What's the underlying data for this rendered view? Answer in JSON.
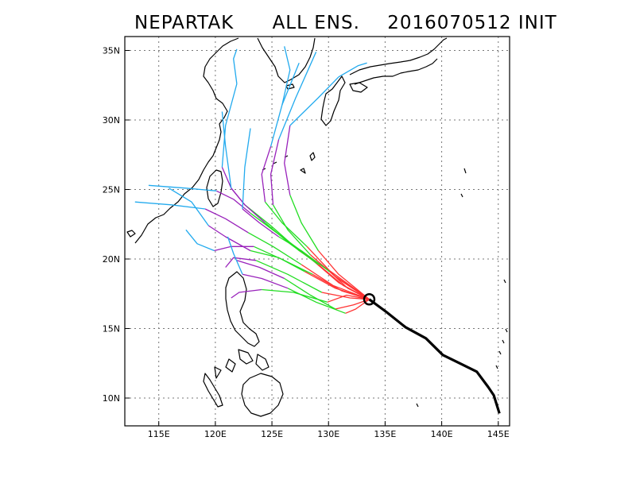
{
  "title": {
    "storm": "NEPARTAK",
    "ensemble": "ALL ENS.",
    "init": "2016070512 INIT"
  },
  "chart_data": {
    "type": "map",
    "title": "NEPARTAK   ALL ENS.  2016070512 INIT",
    "lon_range": [
      112,
      146
    ],
    "lat_range": [
      8,
      36
    ],
    "grid": true,
    "x_ticks": [
      {
        "lon": 115,
        "label": "115E"
      },
      {
        "lon": 120,
        "label": "120E"
      },
      {
        "lon": 125,
        "label": "125E"
      },
      {
        "lon": 130,
        "label": "130E"
      },
      {
        "lon": 135,
        "label": "135E"
      },
      {
        "lon": 140,
        "label": "140E"
      },
      {
        "lon": 145,
        "label": "145E"
      }
    ],
    "y_ticks": [
      {
        "lat": 10,
        "label": "10N"
      },
      {
        "lat": 15,
        "label": "15N"
      },
      {
        "lat": 20,
        "label": "20N"
      },
      {
        "lat": 25,
        "label": "25N"
      },
      {
        "lat": 30,
        "label": "30N"
      },
      {
        "lat": 35,
        "label": "35N"
      }
    ],
    "current_position": {
      "lon": 133.6,
      "lat": 17.1,
      "marker": "circle"
    },
    "best_track": {
      "color": "#000000",
      "points": [
        [
          145.1,
          8.9
        ],
        [
          144.6,
          10.2
        ],
        [
          144.1,
          10.8
        ],
        [
          143.1,
          11.9
        ],
        [
          141.6,
          12.5
        ],
        [
          140.1,
          13.1
        ],
        [
          138.6,
          14.3
        ],
        [
          136.8,
          15.1
        ],
        [
          135.1,
          16.2
        ],
        [
          133.6,
          17.1
        ]
      ]
    },
    "ensemble_tracks": [
      {
        "c": "#ff3333",
        "p": [
          [
            133.6,
            17.1
          ],
          [
            130.9,
            18.3
          ],
          [
            127.9,
            20.4
          ]
        ]
      },
      {
        "c": "#ff3333",
        "p": [
          [
            133.6,
            17.1
          ],
          [
            130.5,
            18.8
          ],
          [
            128.1,
            20.9
          ]
        ]
      },
      {
        "c": "#ff3333",
        "p": [
          [
            133.6,
            17.1
          ],
          [
            130.4,
            18.1
          ],
          [
            127.6,
            19.6
          ]
        ]
      },
      {
        "c": "#ff3333",
        "p": [
          [
            133.6,
            17.1
          ],
          [
            131.2,
            17.7
          ],
          [
            128.6,
            18.9
          ]
        ]
      },
      {
        "c": "#ff3333",
        "p": [
          [
            133.6,
            17.1
          ],
          [
            130.8,
            18.6
          ],
          [
            128.4,
            20.3
          ]
        ]
      },
      {
        "c": "#ff3333",
        "p": [
          [
            133.6,
            17.1
          ],
          [
            131.6,
            17.4
          ],
          [
            129.9,
            16.9
          ]
        ]
      },
      {
        "c": "#ff3333",
        "p": [
          [
            133.6,
            17.1
          ],
          [
            132.2,
            16.7
          ],
          [
            130.6,
            16.4
          ]
        ]
      },
      {
        "c": "#ff3333",
        "p": [
          [
            133.6,
            17.1
          ],
          [
            131.3,
            18.1
          ],
          [
            129.1,
            19.6
          ]
        ]
      },
      {
        "c": "#ff3333",
        "p": [
          [
            133.6,
            17.1
          ],
          [
            130.2,
            19.1
          ],
          [
            127.4,
            20.6
          ]
        ]
      },
      {
        "c": "#ff3333",
        "p": [
          [
            133.6,
            17.1
          ],
          [
            131.9,
            17.2
          ],
          [
            129.4,
            17.6
          ]
        ]
      },
      {
        "c": "#ff3333",
        "p": [
          [
            133.6,
            17.1
          ],
          [
            130.9,
            18.9
          ],
          [
            129.1,
            20.6
          ]
        ]
      },
      {
        "c": "#ff3333",
        "p": [
          [
            133.6,
            17.1
          ],
          [
            132.4,
            16.4
          ],
          [
            131.5,
            16.1
          ]
        ]
      },
      {
        "c": "#ff3333",
        "p": [
          [
            133.6,
            17.1
          ],
          [
            130.6,
            17.9
          ],
          [
            127.9,
            19.1
          ]
        ]
      },
      {
        "c": "#ff3333",
        "p": [
          [
            133.6,
            17.1
          ],
          [
            131.7,
            17.9
          ],
          [
            130.1,
            19.1
          ]
        ]
      },
      {
        "c": "#22dd22",
        "p": [
          [
            127.9,
            20.4
          ],
          [
            125.4,
            21.9
          ],
          [
            123.1,
            23.3
          ]
        ]
      },
      {
        "c": "#22dd22",
        "p": [
          [
            128.1,
            20.9
          ],
          [
            125.9,
            22.6
          ],
          [
            124.4,
            24.1
          ]
        ]
      },
      {
        "c": "#22dd22",
        "p": [
          [
            127.6,
            19.6
          ],
          [
            125.1,
            20.9
          ],
          [
            122.9,
            21.9
          ]
        ]
      },
      {
        "c": "#22dd22",
        "p": [
          [
            128.6,
            18.9
          ],
          [
            126.1,
            19.9
          ],
          [
            123.4,
            20.9
          ]
        ]
      },
      {
        "c": "#22dd22",
        "p": [
          [
            128.4,
            20.3
          ],
          [
            126.4,
            22.1
          ],
          [
            125.1,
            23.9
          ]
        ]
      },
      {
        "c": "#22dd22",
        "p": [
          [
            129.9,
            16.9
          ],
          [
            126.9,
            17.6
          ],
          [
            124.1,
            17.8
          ]
        ]
      },
      {
        "c": "#22dd22",
        "p": [
          [
            130.6,
            16.4
          ],
          [
            128.4,
            17.4
          ],
          [
            126.1,
            18.6
          ]
        ]
      },
      {
        "c": "#22dd22",
        "p": [
          [
            129.1,
            19.6
          ],
          [
            126.6,
            21.1
          ],
          [
            124.4,
            22.6
          ]
        ]
      },
      {
        "c": "#22dd22",
        "p": [
          [
            127.4,
            20.6
          ],
          [
            124.9,
            22.4
          ],
          [
            122.6,
            23.9
          ]
        ]
      },
      {
        "c": "#22dd22",
        "p": [
          [
            129.4,
            17.6
          ],
          [
            126.4,
            18.9
          ],
          [
            123.6,
            19.9
          ]
        ]
      },
      {
        "c": "#22dd22",
        "p": [
          [
            129.1,
            20.6
          ],
          [
            127.6,
            22.6
          ],
          [
            126.6,
            24.6
          ]
        ]
      },
      {
        "c": "#22dd22",
        "p": [
          [
            131.5,
            16.1
          ],
          [
            128.9,
            16.9
          ],
          [
            126.4,
            17.9
          ]
        ]
      },
      {
        "c": "#22dd22",
        "p": [
          [
            127.9,
            19.1
          ],
          [
            125.6,
            20.1
          ],
          [
            123.1,
            20.6
          ]
        ]
      },
      {
        "c": "#22dd22",
        "p": [
          [
            130.1,
            19.1
          ],
          [
            127.6,
            20.6
          ],
          [
            125.6,
            21.6
          ]
        ]
      },
      {
        "c": "#9922bb",
        "p": [
          [
            123.1,
            23.3
          ],
          [
            121.6,
            24.3
          ],
          [
            120.1,
            24.9
          ]
        ]
      },
      {
        "c": "#9922bb",
        "p": [
          [
            124.4,
            24.1
          ],
          [
            124.1,
            26.1
          ],
          [
            124.9,
            28.1
          ]
        ]
      },
      {
        "c": "#9922bb",
        "p": [
          [
            122.9,
            21.9
          ],
          [
            120.9,
            22.9
          ],
          [
            119.1,
            23.6
          ]
        ]
      },
      {
        "c": "#9922bb",
        "p": [
          [
            123.4,
            20.9
          ],
          [
            121.4,
            20.9
          ],
          [
            119.9,
            20.6
          ]
        ]
      },
      {
        "c": "#9922bb",
        "p": [
          [
            125.1,
            23.9
          ],
          [
            124.9,
            26.1
          ],
          [
            125.6,
            28.6
          ]
        ]
      },
      {
        "c": "#9922bb",
        "p": [
          [
            124.1,
            17.8
          ],
          [
            122.1,
            17.6
          ],
          [
            121.4,
            17.2
          ]
        ]
      },
      {
        "c": "#9922bb",
        "p": [
          [
            126.1,
            18.6
          ],
          [
            123.9,
            19.4
          ],
          [
            121.9,
            19.9
          ]
        ]
      },
      {
        "c": "#9922bb",
        "p": [
          [
            124.4,
            22.6
          ],
          [
            122.6,
            23.9
          ],
          [
            121.4,
            25.1
          ]
        ]
      },
      {
        "c": "#9922bb",
        "p": [
          [
            122.6,
            23.9
          ],
          [
            121.4,
            25.1
          ],
          [
            120.6,
            26.6
          ]
        ]
      },
      {
        "c": "#9922bb",
        "p": [
          [
            123.6,
            19.9
          ],
          [
            121.6,
            20.1
          ],
          [
            120.9,
            19.4
          ]
        ]
      },
      {
        "c": "#9922bb",
        "p": [
          [
            126.6,
            24.6
          ],
          [
            126.1,
            26.9
          ],
          [
            126.6,
            29.6
          ]
        ]
      },
      {
        "c": "#9922bb",
        "p": [
          [
            126.4,
            17.9
          ],
          [
            124.1,
            18.6
          ],
          [
            122.4,
            18.9
          ]
        ]
      },
      {
        "c": "#9922bb",
        "p": [
          [
            123.1,
            20.6
          ],
          [
            120.9,
            21.6
          ],
          [
            119.4,
            22.4
          ]
        ]
      },
      {
        "c": "#9922bb",
        "p": [
          [
            125.6,
            21.6
          ],
          [
            123.9,
            22.6
          ],
          [
            122.4,
            23.6
          ]
        ]
      },
      {
        "c": "#22aaee",
        "p": [
          [
            120.1,
            24.9
          ],
          [
            117.4,
            25.1
          ],
          [
            114.1,
            25.3
          ]
        ]
      },
      {
        "c": "#22aaee",
        "p": [
          [
            124.9,
            28.1
          ],
          [
            125.9,
            31.1
          ],
          [
            127.4,
            34.1
          ]
        ]
      },
      {
        "c": "#22aaee",
        "p": [
          [
            119.1,
            23.6
          ],
          [
            116.1,
            23.9
          ],
          [
            112.9,
            24.1
          ]
        ]
      },
      {
        "c": "#22aaee",
        "p": [
          [
            119.9,
            20.6
          ],
          [
            118.4,
            21.1
          ],
          [
            117.4,
            22.1
          ]
        ]
      },
      {
        "c": "#22aaee",
        "p": [
          [
            125.6,
            28.6
          ],
          [
            127.1,
            31.6
          ],
          [
            128.9,
            34.9
          ]
        ]
      },
      {
        "c": "#22aaee",
        "p": [
          [
            121.4,
            25.1
          ],
          [
            120.9,
            28.1
          ],
          [
            120.6,
            30.6
          ]
        ]
      },
      {
        "c": "#22aaee",
        "p": [
          [
            120.6,
            26.6
          ],
          [
            120.9,
            29.6
          ],
          [
            121.9,
            32.6
          ]
        ]
      },
      {
        "c": "#22aaee",
        "p": [
          [
            126.6,
            29.6
          ],
          [
            129.1,
            31.6
          ],
          [
            130.9,
            33.1
          ]
        ]
      },
      {
        "c": "#22aaee",
        "p": [
          [
            122.4,
            23.6
          ],
          [
            122.6,
            26.6
          ],
          [
            123.1,
            29.4
          ]
        ]
      },
      {
        "c": "#22aaee",
        "p": [
          [
            119.4,
            22.4
          ],
          [
            117.9,
            24.1
          ],
          [
            115.9,
            25.1
          ]
        ]
      },
      {
        "c": "#22aaee",
        "p": [
          [
            122.4,
            18.9
          ],
          [
            121.6,
            20.4
          ],
          [
            121.1,
            21.6
          ]
        ]
      },
      {
        "c": "#22aaee",
        "p": [
          [
            125.9,
            31.1
          ],
          [
            126.6,
            33.6
          ],
          [
            126.1,
            35.3
          ]
        ]
      },
      {
        "c": "#22aaee",
        "p": [
          [
            121.9,
            32.6
          ],
          [
            121.6,
            34.4
          ],
          [
            121.9,
            35.1
          ]
        ]
      },
      {
        "c": "#22aaee",
        "p": [
          [
            130.9,
            33.1
          ],
          [
            132.6,
            33.9
          ],
          [
            133.4,
            34.1
          ]
        ]
      }
    ]
  }
}
